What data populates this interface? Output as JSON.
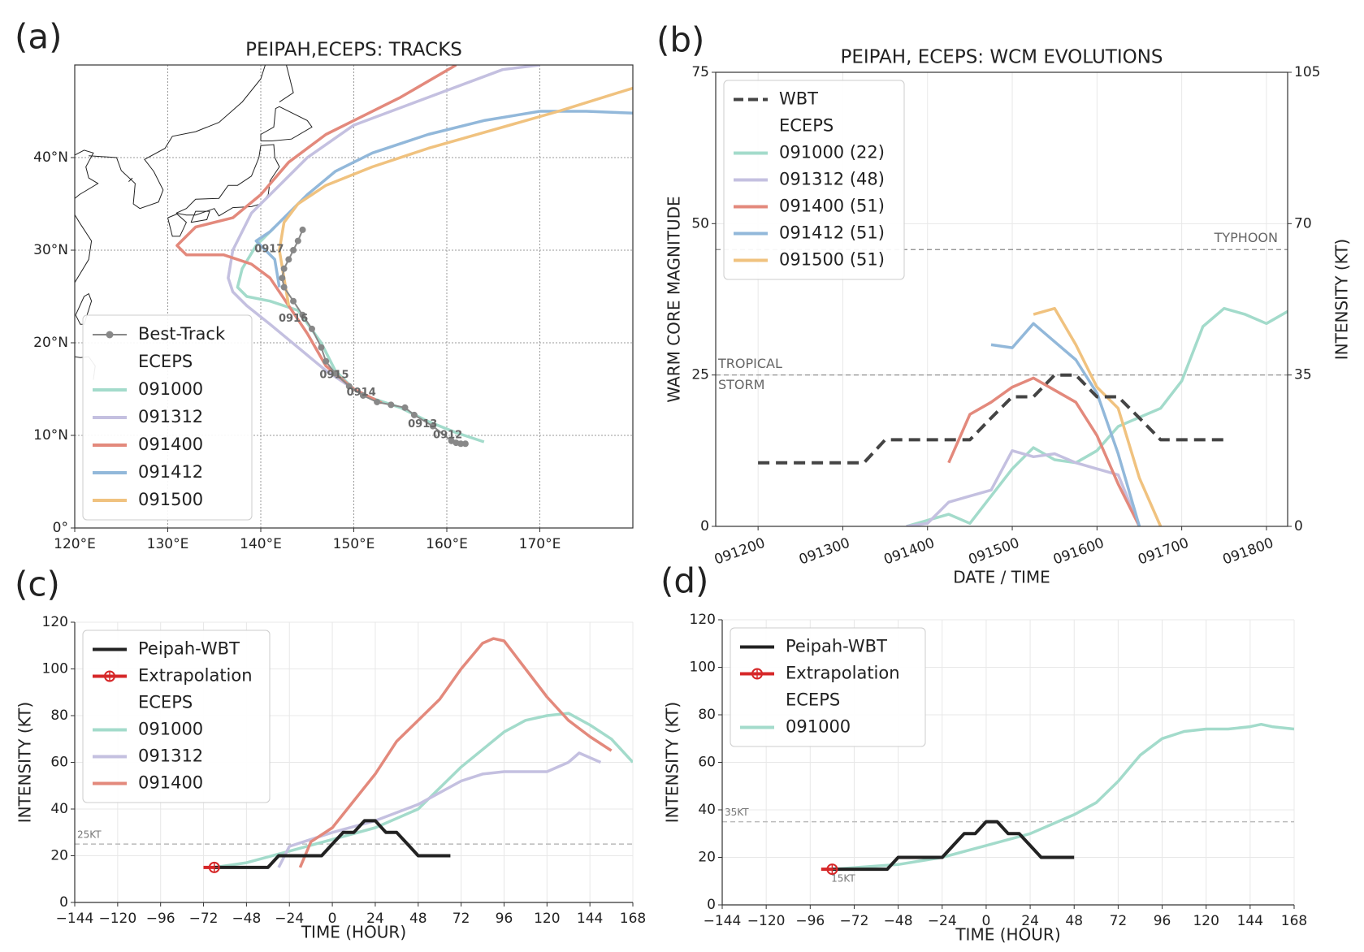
{
  "chart_data": [
    {
      "type": "map",
      "panel_label": "(a)",
      "title": "PEIPAH,ECEPS: TRACKS",
      "xlim": [
        120,
        180
      ],
      "ylim": [
        0,
        50
      ],
      "xticks": [
        {
          "value": 120,
          "label": "120°E"
        },
        {
          "value": 130,
          "label": "130°E"
        },
        {
          "value": 140,
          "label": "140°E"
        },
        {
          "value": 150,
          "label": "150°E"
        },
        {
          "value": 160,
          "label": "160°E"
        },
        {
          "value": 170,
          "label": "170°E"
        }
      ],
      "yticks": [
        {
          "value": 0,
          "label": "0°"
        },
        {
          "value": 10,
          "label": "10°N"
        },
        {
          "value": 20,
          "label": "20°N"
        },
        {
          "value": 30,
          "label": "30°N"
        },
        {
          "value": 40,
          "label": "40°N"
        }
      ],
      "grid": true,
      "legend": "lower left",
      "series": [
        {
          "name": "Best-Track",
          "color": "#888888",
          "marker": "circle",
          "x": [
            162,
            161.5,
            161,
            160.5,
            158.5,
            156.5,
            155.5,
            154,
            152.5,
            151,
            149.5,
            148,
            147,
            146.5,
            145.5,
            144.5,
            143.5,
            142.5,
            142.3,
            142.5,
            143,
            143.5,
            144,
            144.5
          ],
          "values": [
            9.1,
            9.1,
            9.2,
            9.4,
            11,
            12.2,
            13,
            13.3,
            13.6,
            14.3,
            15.3,
            16.7,
            18,
            19.5,
            21.5,
            23,
            24.5,
            26,
            27,
            28,
            29,
            30,
            31,
            32.2
          ]
        }
      ],
      "ensemble": {
        "name": "ECEPS",
        "series": [
          {
            "name": "091000",
            "color": "#a3dbcb",
            "x": [
              164,
              161,
              158,
              155,
              152,
              150,
              148,
              146.5,
              144,
              141,
              138.5,
              137.5,
              138,
              139.5,
              141.5
            ],
            "values": [
              9.3,
              10.3,
              11.5,
              13,
              14,
              15,
              17,
              20,
              23.5,
              24.5,
              25,
              26,
              28,
              30.5,
              32.5
            ]
          },
          {
            "name": "091312",
            "color": "#c4c0e0",
            "x": [
              150,
              147,
              144,
              141,
              138.5,
              137,
              136.5,
              137,
              139,
              142,
              145,
              150,
              158,
              166,
              170
            ],
            "values": [
              15,
              17,
              19.5,
              22,
              24,
              25.5,
              27,
              30,
              34,
              37,
              40,
              43.5,
              46.5,
              49.5,
              50
            ]
          },
          {
            "name": "091400",
            "color": "#e3897c",
            "x": [
              153,
              150,
              147,
              145,
              143,
              141,
              139,
              136,
              132,
              131,
              133,
              137,
              140,
              143,
              147,
              150,
              155,
              161
            ],
            "values": [
              13.5,
              15,
              17.5,
              21,
              24,
              27,
              28.5,
              29.5,
              29.5,
              30.5,
              32.5,
              33.5,
              36,
              39.5,
              42.5,
              44,
              46.5,
              50
            ]
          },
          {
            "name": "091412",
            "color": "#92b8da",
            "x": [
              142,
              141.5,
              139.5,
              141,
              143,
              145,
              148,
              152,
              158,
              164,
              170,
              175,
              180
            ],
            "values": [
              26,
              29,
              31,
              32,
              34,
              36,
              38.5,
              40.5,
              42.5,
              44,
              45,
              45,
              44.8
            ]
          },
          {
            "name": "091500",
            "color": "#f0c27f",
            "x": [
              143,
              142.5,
              142,
              142.5,
              144,
              147,
              152,
              158,
              165,
              172,
              180
            ],
            "values": [
              24,
              27,
              30,
              33,
              35,
              37,
              39,
              41,
              43,
              45,
              47.5
            ]
          }
        ]
      },
      "annotations": [
        {
          "text": "0912",
          "x": 160.1,
          "y": 10.0
        },
        {
          "text": "0913",
          "x": 157.4,
          "y": 11.2
        },
        {
          "text": "0914",
          "x": 150.8,
          "y": 14.6
        },
        {
          "text": "0915",
          "x": 147.9,
          "y": 16.5
        },
        {
          "text": "0916",
          "x": 143.5,
          "y": 22.6
        },
        {
          "text": "0917",
          "x": 140.9,
          "y": 30.1
        }
      ]
    },
    {
      "type": "line",
      "panel_label": "(b)",
      "title": "PEIPAH, ECEPS: WCM EVOLUTIONS",
      "xlabel": "DATE / TIME",
      "ylabel": "WARM CORE MAGNITUDE",
      "y2label": "INTENSITY (KT)",
      "xlim": [
        "091112",
        "091806"
      ],
      "xticks": [
        "091200",
        "091300",
        "091400",
        "091500",
        "091600",
        "091700",
        "091800"
      ],
      "ylim": [
        0,
        75
      ],
      "yticks": [
        0,
        25,
        50,
        75
      ],
      "y2lim": [
        0,
        105
      ],
      "y2ticks": [
        0,
        35,
        70,
        105
      ],
      "grid": true,
      "legend": "upper left",
      "reference_lines": [
        {
          "value": 64,
          "axis": "y2",
          "label": [
            "TYPHOON"
          ]
        },
        {
          "value": 35,
          "axis": "y2",
          "label": [
            "TROPICAL",
            "STORM"
          ]
        }
      ],
      "series": [
        {
          "name": "WBT",
          "color": "#444444",
          "style": "dashed",
          "x": [
            "091200",
            "091206",
            "091212",
            "091218",
            "091300",
            "091306",
            "091312",
            "091318",
            "091400",
            "091406",
            "091412",
            "091418",
            "091500",
            "091506",
            "091512",
            "091518",
            "091600",
            "091606",
            "091612",
            "091618",
            "091700",
            "091706",
            "091712"
          ],
          "values": [
            10.5,
            10.5,
            10.5,
            10.5,
            10.5,
            10.5,
            14.3,
            14.3,
            14.3,
            14.3,
            14.3,
            17.9,
            21.4,
            21.4,
            25,
            25,
            21.4,
            21.4,
            17.9,
            14.3,
            14.3,
            14.3,
            14.3
          ]
        }
      ],
      "ensemble": {
        "name": "ECEPS",
        "series": [
          {
            "name": "091000 (22)",
            "color": "#a3dbcb",
            "x": [
              "091318",
              "091400",
              "091406",
              "091412",
              "091418",
              "091500",
              "091506",
              "091512",
              "091518",
              "091600",
              "091606",
              "091612",
              "091618",
              "091700",
              "091706",
              "091712",
              "091718",
              "091800",
              "091806"
            ],
            "values": [
              0,
              1,
              2,
              0.5,
              5,
              9.5,
              13,
              11,
              10.5,
              12.5,
              16.5,
              18,
              19.5,
              24,
              33,
              36,
              35,
              33.5,
              35.5
            ]
          },
          {
            "name": "091312 (48)",
            "color": "#c4c0e0",
            "x": [
              "091318",
              "091400",
              "091406",
              "091412",
              "091418",
              "091500",
              "091506",
              "091512",
              "091518",
              "091600",
              "091606",
              "091612"
            ],
            "values": [
              0,
              0.5,
              4,
              5,
              6,
              12.5,
              11.5,
              12,
              10.5,
              9.5,
              8.5,
              0
            ]
          },
          {
            "name": "091400 (51)",
            "color": "#e3897c",
            "x": [
              "091406",
              "091412",
              "091418",
              "091500",
              "091506",
              "091512",
              "091518",
              "091600",
              "091606",
              "091612"
            ],
            "values": [
              10.5,
              18.5,
              20.5,
              23,
              24.5,
              22.5,
              20.5,
              15,
              7,
              0
            ]
          },
          {
            "name": "091412 (51)",
            "color": "#92b8da",
            "x": [
              "091418",
              "091500",
              "091506",
              "091512",
              "091518",
              "091600",
              "091606",
              "091612"
            ],
            "values": [
              30,
              29.5,
              33.5,
              30.5,
              27.5,
              22,
              12,
              0
            ]
          },
          {
            "name": "091500 (51)",
            "color": "#f0c27f",
            "x": [
              "091506",
              "091512",
              "091518",
              "091600",
              "091606",
              "091612",
              "091618"
            ],
            "values": [
              35,
              36,
              30,
              23,
              19.5,
              8,
              0
            ]
          }
        ]
      }
    },
    {
      "type": "line",
      "panel_label": "(c)",
      "xlabel": "TIME (HOUR)",
      "ylabel": "INTENSITY (KT)",
      "xlim": [
        -144,
        168
      ],
      "xticks": [
        {
          "value": -144,
          "label": "−144"
        },
        {
          "value": -120,
          "label": "−120"
        },
        {
          "value": -96,
          "label": "−96"
        },
        {
          "value": -72,
          "label": "−72"
        },
        {
          "value": -48,
          "label": "−48"
        },
        {
          "value": -24,
          "label": "−24"
        },
        0,
        24,
        48,
        72,
        96,
        120,
        144,
        168
      ],
      "ylim": [
        0,
        120
      ],
      "yticks": [
        0,
        20,
        40,
        60,
        80,
        100,
        120
      ],
      "grid": true,
      "legend": "upper left",
      "reference_lines": [
        {
          "value": 25,
          "label": [
            "25KT"
          ]
        }
      ],
      "series": [
        {
          "name": "Peipah-WBT",
          "color": "#222222",
          "x": [
            -66,
            -60,
            -54,
            -48,
            -42,
            -36,
            -30,
            -24,
            -18,
            -12,
            -6,
            0,
            6,
            12,
            18,
            24,
            30,
            36,
            42,
            48,
            54,
            60,
            66
          ],
          "values": [
            15,
            15,
            15,
            15,
            15,
            15,
            20,
            20,
            20,
            20,
            20,
            25,
            30,
            30,
            35,
            35,
            30,
            30,
            25,
            20,
            20,
            20,
            20
          ]
        },
        {
          "name": "Extrapolation",
          "color": "#d62728",
          "marker": "circled-plus",
          "x": [
            -66,
            -72
          ],
          "values": [
            15,
            15
          ]
        }
      ],
      "ensemble": {
        "name": "ECEPS",
        "series": [
          {
            "name": "091000",
            "color": "#a3dbcb",
            "x": [
              -66,
              -48,
              -24,
              0,
              24,
              48,
              72,
              96,
              108,
              120,
              132,
              144,
              156,
              168
            ],
            "values": [
              15,
              17,
              22,
              27,
              32,
              40,
              58,
              73,
              78,
              80,
              81,
              76,
              70,
              60
            ]
          },
          {
            "name": "091312",
            "color": "#c4c0e0",
            "x": [
              -30,
              -24,
              0,
              24,
              48,
              72,
              84,
              96,
              120,
              132,
              138,
              150
            ],
            "values": [
              15,
              24,
              30,
              35,
              42,
              52,
              55,
              56,
              56,
              60,
              64,
              60
            ]
          },
          {
            "name": "091400",
            "color": "#e3897c",
            "x": [
              -18,
              -12,
              0,
              24,
              36,
              48,
              60,
              72,
              84,
              90,
              96,
              108,
              120,
              132,
              144,
              156
            ],
            "values": [
              15,
              26,
              32,
              55,
              69,
              78,
              87,
              100,
              111,
              113,
              112,
              100,
              88,
              78,
              71,
              65
            ]
          }
        ]
      }
    },
    {
      "type": "line",
      "panel_label": "(d)",
      "xlabel": "TIME (HOUR)",
      "ylabel": "INTENSITY (KT)",
      "xlim": [
        -144,
        168
      ],
      "xticks": [
        {
          "value": -144,
          "label": "−144"
        },
        {
          "value": -120,
          "label": "−120"
        },
        {
          "value": -96,
          "label": "−96"
        },
        {
          "value": -72,
          "label": "−72"
        },
        {
          "value": -48,
          "label": "−48"
        },
        {
          "value": -24,
          "label": "−24"
        },
        0,
        24,
        48,
        72,
        96,
        120,
        144,
        168
      ],
      "ylim": [
        0,
        120
      ],
      "yticks": [
        0,
        20,
        40,
        60,
        80,
        100,
        120
      ],
      "grid": true,
      "legend": "upper left",
      "reference_lines": [
        {
          "value": 35,
          "label": [
            "35KT"
          ]
        }
      ],
      "annotations": [
        {
          "text": "15KT",
          "x": -78,
          "y": 11
        }
      ],
      "series": [
        {
          "name": "Peipah-WBT",
          "color": "#222222",
          "x": [
            -84,
            -78,
            -72,
            -66,
            -60,
            -54,
            -48,
            -42,
            -36,
            -30,
            -24,
            -18,
            -12,
            -6,
            0,
            6,
            12,
            18,
            24,
            30,
            36,
            42,
            48
          ],
          "values": [
            15,
            15,
            15,
            15,
            15,
            15,
            20,
            20,
            20,
            20,
            20,
            25,
            30,
            30,
            35,
            35,
            30,
            30,
            25,
            20,
            20,
            20,
            20
          ]
        },
        {
          "name": "Extrapolation",
          "color": "#d62728",
          "marker": "circled-plus",
          "x": [
            -84,
            -90
          ],
          "values": [
            15,
            15
          ]
        }
      ],
      "ensemble": {
        "name": "ECEPS",
        "series": [
          {
            "name": "091000",
            "color": "#a3dbcb",
            "x": [
              -84,
              -48,
              -24,
              0,
              24,
              48,
              60,
              72,
              84,
              96,
              108,
              120,
              132,
              144,
              150,
              156,
              168
            ],
            "values": [
              15,
              17,
              20,
              25,
              30,
              38,
              43,
              52,
              63,
              70,
              73,
              74,
              74,
              75,
              76,
              75,
              74
            ]
          }
        ]
      }
    }
  ]
}
